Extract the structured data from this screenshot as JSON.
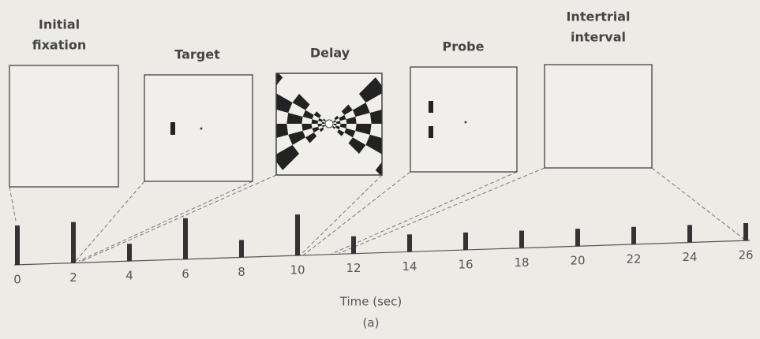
{
  "panels": [
    {
      "label": [
        "Initial",
        "fixation"
      ]
    },
    {
      "label": [
        "Target"
      ]
    },
    {
      "label": [
        "Delay"
      ]
    },
    {
      "label": [
        "Probe"
      ]
    },
    {
      "label": [
        "Intertrial",
        "interval"
      ]
    }
  ],
  "timeline": {
    "ticks": [
      0,
      2,
      4,
      6,
      8,
      10,
      12,
      14,
      16,
      18,
      20,
      22,
      24,
      26
    ],
    "axis_label": "Time (sec)"
  },
  "caption": "(a)"
}
